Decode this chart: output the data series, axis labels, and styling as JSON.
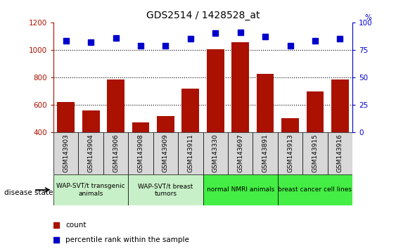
{
  "title": "GDS2514 / 1428528_at",
  "samples": [
    "GSM143903",
    "GSM143904",
    "GSM143906",
    "GSM143908",
    "GSM143909",
    "GSM143911",
    "GSM143330",
    "GSM143697",
    "GSM143891",
    "GSM143913",
    "GSM143915",
    "GSM143916"
  ],
  "counts": [
    620,
    555,
    785,
    470,
    515,
    715,
    1005,
    1055,
    825,
    500,
    695,
    785
  ],
  "percentiles": [
    83,
    82,
    86,
    79,
    79,
    85,
    90,
    91,
    87,
    79,
    83,
    85
  ],
  "bar_color": "#aa1100",
  "dot_color": "#0000cc",
  "ylim_left": [
    400,
    1200
  ],
  "ylim_right": [
    0,
    100
  ],
  "yticks_left": [
    400,
    600,
    800,
    1000,
    1200
  ],
  "yticks_right": [
    0,
    25,
    50,
    75,
    100
  ],
  "groups": [
    {
      "label": "WAP-SVT/t transgenic\nanimals",
      "start": 0,
      "end": 3,
      "color": "#c8f0c8"
    },
    {
      "label": "WAP-SVT/t breast\ntumors",
      "start": 3,
      "end": 6,
      "color": "#c8f0c8"
    },
    {
      "label": "normal NMRI animals",
      "start": 6,
      "end": 9,
      "color": "#44ee44"
    },
    {
      "label": "breast cancer cell lines",
      "start": 9,
      "end": 12,
      "color": "#44ee44"
    }
  ],
  "sample_box_color": "#d8d8d8",
  "disease_state_label": "disease state",
  "legend_count": "count",
  "legend_percentile": "percentile rank within the sample"
}
